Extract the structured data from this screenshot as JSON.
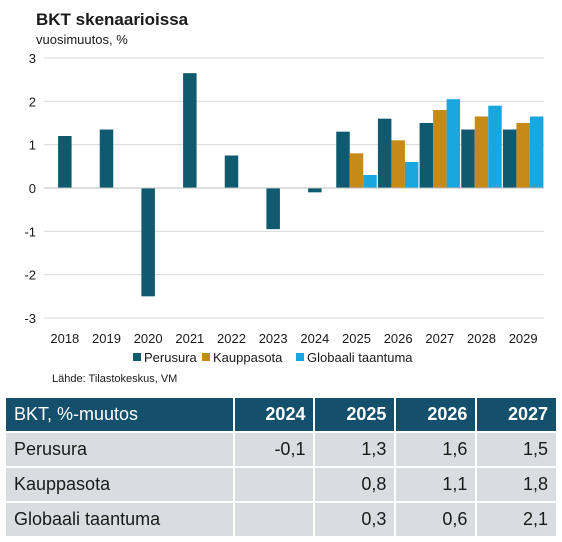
{
  "chart_data": {
    "type": "bar",
    "title": "BKT skenaarioissa",
    "ylabel": "vuosimuutos, %",
    "categories": [
      "2018",
      "2019",
      "2020",
      "2021",
      "2022",
      "2023",
      "2024",
      "2025",
      "2026",
      "2027",
      "2028",
      "2029"
    ],
    "ylim": [
      -3,
      3
    ],
    "yticks": [
      3,
      2,
      1,
      0,
      -1,
      -2,
      -3
    ],
    "grid": true,
    "legend_position": "bottom",
    "series": [
      {
        "name": "Perusura",
        "color": "#0f5a6e",
        "values": [
          1.2,
          1.35,
          -2.5,
          2.65,
          0.75,
          -0.95,
          -0.1,
          1.3,
          1.6,
          1.5,
          1.35,
          1.35
        ]
      },
      {
        "name": "Kauppasota",
        "color": "#c58a17",
        "values": [
          null,
          null,
          null,
          null,
          null,
          null,
          null,
          0.8,
          1.1,
          1.8,
          1.65,
          1.5
        ]
      },
      {
        "name": "Globaali taantuma",
        "color": "#1aa7e0",
        "values": [
          null,
          null,
          null,
          null,
          null,
          null,
          null,
          0.3,
          0.6,
          2.05,
          1.9,
          1.65
        ]
      }
    ],
    "source": "Lähde: Tilastokeskus, VM"
  },
  "table": {
    "header": [
      "BKT, %-muutos",
      "2024",
      "2025",
      "2026",
      "2027"
    ],
    "rows": [
      [
        "Perusura",
        "-0,1",
        "1,3",
        "1,6",
        "1,5"
      ],
      [
        "Kauppasota",
        "",
        "0,8",
        "1,1",
        "1,8"
      ],
      [
        "Globaali taantuma",
        "",
        "0,3",
        "0,6",
        "2,1"
      ]
    ]
  }
}
